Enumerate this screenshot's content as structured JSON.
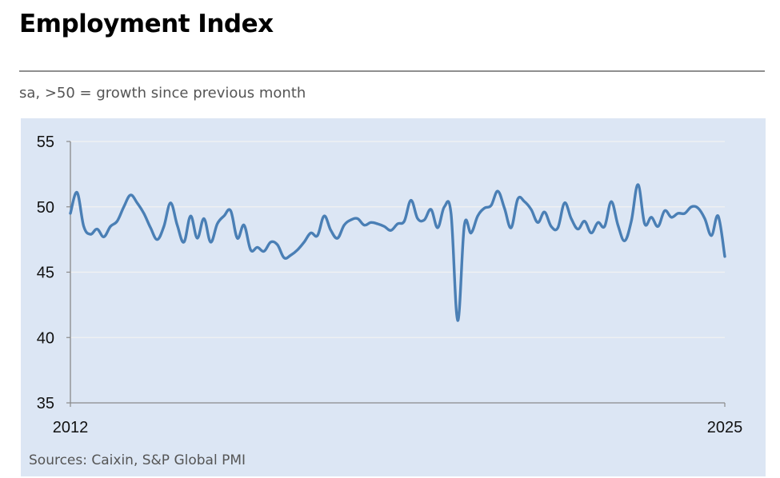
{
  "header": {
    "title": "Employment Index",
    "subtitle": "sa, >50 = growth since previous month"
  },
  "footer": {
    "source": "Sources: Caixin, S&P Global PMI"
  },
  "colors": {
    "panel_background": "#dce6f4",
    "line": "#4a7fb5",
    "gridline": "#f2f2f2",
    "axis": "#8a8a8a"
  },
  "chart_data": {
    "type": "line",
    "title": "Employment Index",
    "subtitle": "sa, >50 = growth since previous month",
    "xlabel": "",
    "ylabel": "",
    "xlim": [
      2012,
      2025
    ],
    "ylim": [
      35,
      55
    ],
    "y_ticks": [
      55,
      50,
      45,
      40,
      35
    ],
    "x_tick_labels": [
      "2012",
      "2025"
    ],
    "grid": "horizontal",
    "series": [
      {
        "values": [
          49.5,
          51.1,
          48.5,
          47.9,
          48.3,
          47.7,
          48.5,
          48.9,
          50.0,
          50.9,
          50.3,
          49.5,
          48.4,
          47.5,
          48.5,
          50.3,
          48.6,
          47.3,
          49.3,
          47.6,
          49.1,
          47.3,
          48.7,
          49.3,
          49.7,
          47.6,
          48.6,
          46.7,
          46.9,
          46.6,
          47.3,
          47.1,
          46.1,
          46.3,
          46.7,
          47.3,
          48.0,
          47.8,
          49.3,
          48.2,
          47.6,
          48.6,
          49.0,
          49.1,
          48.6,
          48.8,
          48.7,
          48.5,
          48.2,
          48.7,
          48.9,
          50.5,
          49.1,
          49.0,
          49.8,
          48.4,
          50.0,
          49.5,
          41.3,
          48.6,
          48.0,
          49.3,
          49.9,
          50.1,
          51.2,
          49.9,
          48.4,
          50.6,
          50.4,
          49.8,
          48.8,
          49.6,
          48.5,
          48.4,
          50.3,
          49.1,
          48.3,
          48.9,
          48.0,
          48.8,
          48.5,
          50.4,
          48.6,
          47.4,
          48.9,
          51.7,
          48.7,
          49.2,
          48.5,
          49.7,
          49.2,
          49.5,
          49.5,
          50.0,
          49.9,
          49.1,
          47.8,
          49.3,
          46.2
        ]
      }
    ]
  }
}
